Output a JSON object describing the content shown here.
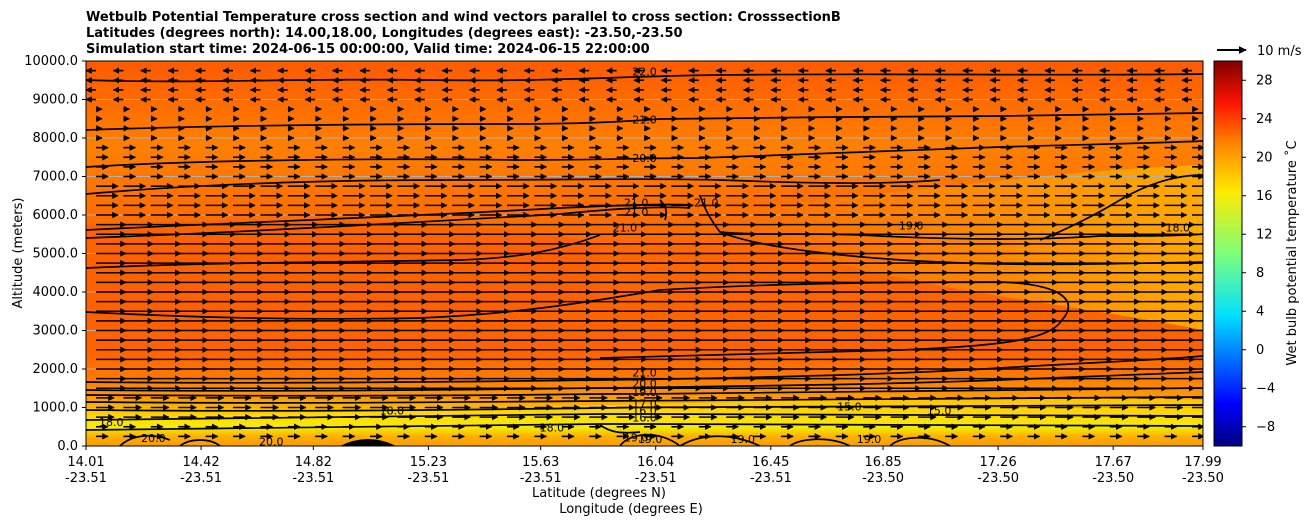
{
  "chart_data": {
    "type": "contour",
    "title_lines": [
      "Wetbulb Potential Temperature cross section and wind vectors parallel to cross section: CrosssectionB",
      "Latitudes (degrees north): 14.00,18.00, Longitudes (degrees east): -23.50,-23.50",
      "Simulation start time: 2024-06-15 00:00:00, Valid time: 2024-06-15 22:00:00"
    ],
    "ylabel": "Altitude (meters)",
    "xlabel": "Latitude (degrees N)",
    "xlabel2": "Longitude (degrees E)",
    "ylim": [
      0,
      10000
    ],
    "xlim": [
      14.01,
      17.99
    ],
    "y_ticks": [
      "0.0",
      "1000.0",
      "2000.0",
      "3000.0",
      "4000.0",
      "5000.0",
      "6000.0",
      "7000.0",
      "8000.0",
      "9000.0",
      "10000.0"
    ],
    "x_ticks": [
      {
        "lat": "14.01",
        "lon": "-23.51",
        "value": 14.01
      },
      {
        "lat": "14.42",
        "lon": "-23.51",
        "value": 14.42
      },
      {
        "lat": "14.82",
        "lon": "-23.51",
        "value": 14.82
      },
      {
        "lat": "15.23",
        "lon": "-23.51",
        "value": 15.23
      },
      {
        "lat": "15.63",
        "lon": "-23.51",
        "value": 15.63
      },
      {
        "lat": "16.04",
        "lon": "-23.51",
        "value": 16.04
      },
      {
        "lat": "16.45",
        "lon": "-23.51",
        "value": 16.45
      },
      {
        "lat": "16.85",
        "lon": "-23.50",
        "value": 16.85
      },
      {
        "lat": "17.26",
        "lon": "-23.50",
        "value": 17.26
      },
      {
        "lat": "17.67",
        "lon": "-23.50",
        "value": 17.67
      },
      {
        "lat": "17.99",
        "lon": "-23.50",
        "value": 17.99
      }
    ],
    "grid": "horizontal",
    "colorbar": {
      "label": "Wet bulb potential temperature ˚C",
      "range": [
        -10,
        30
      ],
      "ticks": [
        "28",
        "24",
        "20",
        "16",
        "12",
        "8",
        "4",
        "0",
        "−4",
        "−8"
      ],
      "tick_values": [
        28,
        24,
        20,
        16,
        12,
        8,
        4,
        0,
        -4,
        -8
      ],
      "colormap": "jet"
    },
    "quiver_key": "10 m/s",
    "contour_labels": [
      {
        "text": "22.0",
        "x": 16.0,
        "y": 9700
      },
      {
        "text": "21.0",
        "x": 16.0,
        "y": 8450
      },
      {
        "text": "20.0",
        "x": 16.0,
        "y": 7450
      },
      {
        "text": "21.0",
        "x": 15.97,
        "y": 6300
      },
      {
        "text": "21.0",
        "x": 15.97,
        "y": 6050
      },
      {
        "text": "21.0",
        "x": 15.93,
        "y": 5650
      },
      {
        "text": "21.0",
        "x": 16.22,
        "y": 6300
      },
      {
        "text": "19.0",
        "x": 16.95,
        "y": 5700
      },
      {
        "text": "18.0",
        "x": 17.9,
        "y": 5650
      },
      {
        "text": "21.0",
        "x": 16.0,
        "y": 1880
      },
      {
        "text": "20.0",
        "x": 16.0,
        "y": 1600
      },
      {
        "text": "19.0",
        "x": 16.0,
        "y": 1380
      },
      {
        "text": "17.0",
        "x": 16.0,
        "y": 1080
      },
      {
        "text": "16.0",
        "x": 16.0,
        "y": 900
      },
      {
        "text": "16.0",
        "x": 16.0,
        "y": 720
      },
      {
        "text": "18.0",
        "x": 15.67,
        "y": 450
      },
      {
        "text": "19.0",
        "x": 15.97,
        "y": 200
      },
      {
        "text": "19.0",
        "x": 16.02,
        "y": 150
      },
      {
        "text": "19.0",
        "x": 16.35,
        "y": 150
      },
      {
        "text": "19.0",
        "x": 16.8,
        "y": 150
      },
      {
        "text": "20.0",
        "x": 14.25,
        "y": 180
      },
      {
        "text": "20.0",
        "x": 14.67,
        "y": 90
      },
      {
        "text": "18.0",
        "x": 15.1,
        "y": 900
      },
      {
        "text": "18.0",
        "x": 14.1,
        "y": 600
      },
      {
        "text": "15.0",
        "x": 16.73,
        "y": 1000
      },
      {
        "text": "15.0",
        "x": 17.05,
        "y": 900
      }
    ],
    "wind": {
      "direction": "southward_positive",
      "typical_speed_ms": 10
    }
  }
}
